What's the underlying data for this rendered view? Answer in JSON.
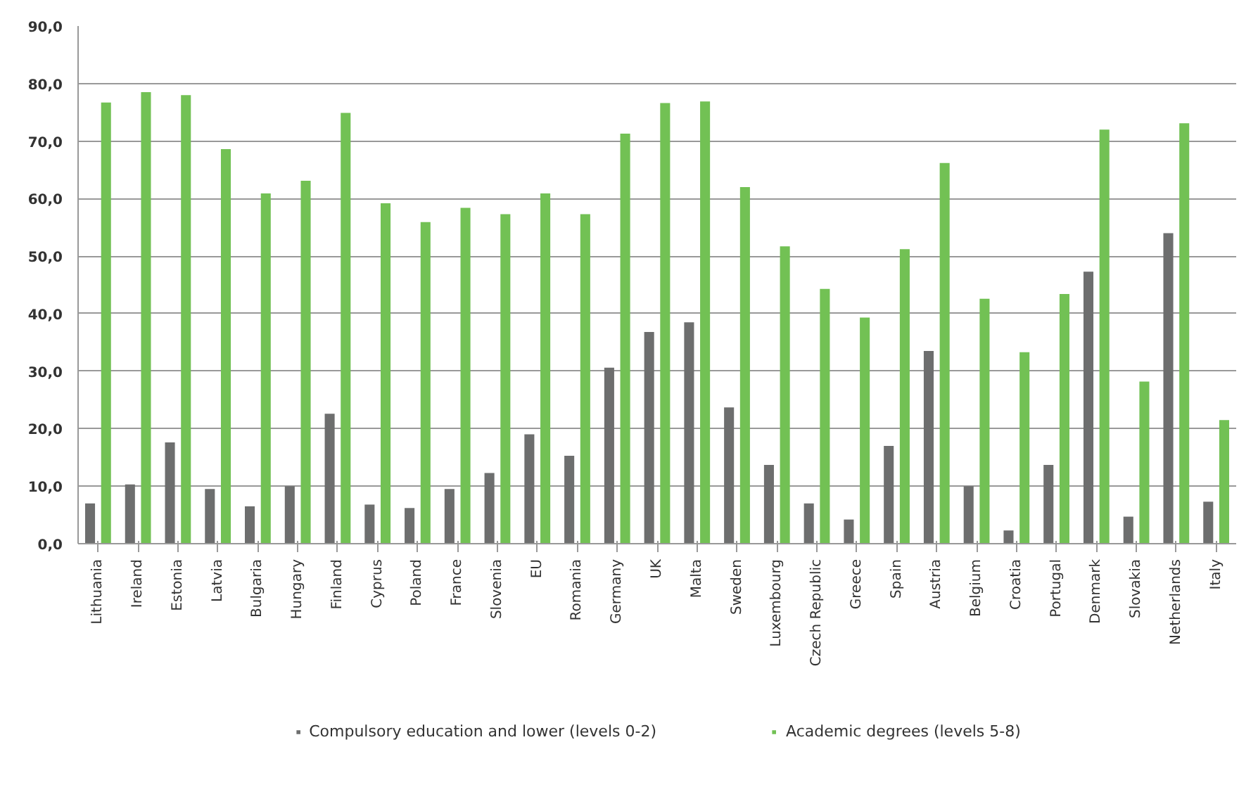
{
  "chart_data": {
    "type": "bar",
    "categories": [
      "Lithuania",
      "Ireland",
      "Estonia",
      "Latvia",
      "Bulgaria",
      "Hungary",
      "Finland",
      "Cyprus",
      "Poland",
      "France",
      "Slovenia",
      "EU",
      "Romania",
      "Germany",
      "UK",
      "Malta",
      "Sweden",
      "Luxembourg",
      "Czech Republic",
      "Greece",
      "Spain",
      "Austria",
      "Belgium",
      "Croatia",
      "Portugal",
      "Denmark",
      "Slovakia",
      "Netherlands",
      "Italy"
    ],
    "series": [
      {
        "name": "Compulsory education and lower (levels 0-2)",
        "color": "#6d6e6e",
        "values": [
          7.0,
          10.3,
          17.6,
          9.5,
          6.5,
          10.0,
          22.6,
          6.8,
          6.2,
          9.5,
          12.3,
          19.0,
          15.3,
          30.6,
          36.8,
          38.5,
          23.7,
          13.7,
          7.0,
          4.2,
          17.0,
          33.5,
          10.0,
          2.3,
          13.7,
          47.3,
          4.7,
          54.0,
          7.3
        ]
      },
      {
        "name": "Academic degrees (levels 5-8)",
        "color": "#72c154",
        "values": [
          76.7,
          78.5,
          78.0,
          68.6,
          60.9,
          63.1,
          74.9,
          59.2,
          55.9,
          58.4,
          57.3,
          60.9,
          57.3,
          71.3,
          76.6,
          76.9,
          62.0,
          51.7,
          44.3,
          39.3,
          51.2,
          66.2,
          42.6,
          33.3,
          43.4,
          72.0,
          28.2,
          73.1,
          21.5
        ]
      }
    ],
    "ylim": [
      0,
      90
    ],
    "yticks": [
      {
        "value": 0,
        "label": "0,0"
      },
      {
        "value": 10,
        "label": "10,0"
      },
      {
        "value": 20,
        "label": "20,0"
      },
      {
        "value": 30,
        "label": "30,0"
      },
      {
        "value": 40,
        "label": "40,0"
      },
      {
        "value": 50,
        "label": "50,0"
      },
      {
        "value": 60,
        "label": "60,0"
      },
      {
        "value": 70,
        "label": "70,0"
      },
      {
        "value": 80,
        "label": "80,0"
      },
      {
        "value": 90,
        "label": "90,0"
      }
    ],
    "grid": "y",
    "legend": "bottom"
  }
}
